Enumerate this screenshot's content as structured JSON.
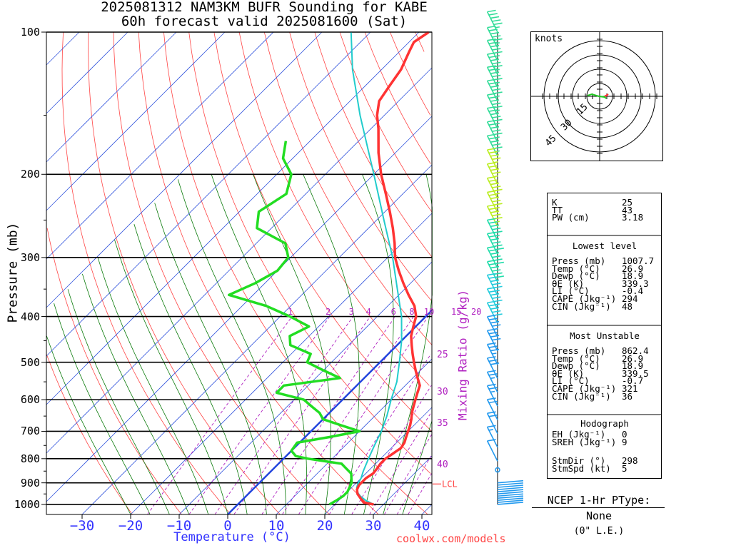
{
  "title_line1": "2025081312 NAM3KM BUFR Sounding for KABE",
  "title_line2": "60h forecast valid 2025081600 (Sat)",
  "y_axis_label": "Pressure (mb)",
  "x_axis_label": "Temperature (°C)",
  "mixing_ratio_label": "Mixing Ratio (g/kg)",
  "credit": "coolwx.com/models",
  "lcl_label": "LCL",
  "ptype_title": "NCEP 1-Hr PType:",
  "ptype_value": "None",
  "ptype_amount": "(0\" L.E.)",
  "hodograph": {
    "units_label": "knots",
    "ring_labels": [
      "15",
      "30",
      "45"
    ]
  },
  "chart_data": {
    "type": "skew-t",
    "x_ticks": [
      -30,
      -20,
      -10,
      0,
      10,
      20,
      30,
      40
    ],
    "y_ticks": [
      100,
      200,
      300,
      400,
      500,
      600,
      700,
      800,
      900,
      1000
    ],
    "y_tick_labels": [
      "100",
      "200",
      "300",
      "400",
      "500",
      "600",
      "700",
      "800",
      "900",
      "1000"
    ],
    "xlim": [
      -38,
      42
    ],
    "ylim": [
      1050,
      100
    ],
    "mixing_ratio_lines": [
      1,
      2,
      3,
      4,
      6,
      8,
      10,
      15,
      20,
      25,
      30,
      35,
      40
    ],
    "temperature": {
      "color": "#ff3333",
      "points": [
        [
          1000,
          28
        ],
        [
          990,
          25.5
        ],
        [
          970,
          24
        ],
        [
          950,
          22.5
        ],
        [
          930,
          21.5
        ],
        [
          910,
          21
        ],
        [
          880,
          21
        ],
        [
          860,
          21.5
        ],
        [
          840,
          21.3
        ],
        [
          820,
          21
        ],
        [
          800,
          21
        ],
        [
          780,
          21.5
        ],
        [
          760,
          22
        ],
        [
          740,
          21.6
        ],
        [
          720,
          20.8
        ],
        [
          700,
          20
        ],
        [
          680,
          19.2
        ],
        [
          660,
          18.2
        ],
        [
          640,
          17
        ],
        [
          620,
          16
        ],
        [
          600,
          15
        ],
        [
          580,
          14
        ],
        [
          560,
          13
        ],
        [
          540,
          11
        ],
        [
          520,
          9
        ],
        [
          500,
          7
        ],
        [
          480,
          5
        ],
        [
          460,
          3
        ],
        [
          440,
          1
        ],
        [
          420,
          -0.5
        ],
        [
          400,
          -2
        ],
        [
          380,
          -4.5
        ],
        [
          360,
          -8
        ],
        [
          340,
          -11.5
        ],
        [
          320,
          -15
        ],
        [
          300,
          -18.5
        ],
        [
          280,
          -21.5
        ],
        [
          260,
          -25
        ],
        [
          240,
          -29
        ],
        [
          220,
          -33.5
        ],
        [
          200,
          -38.5
        ],
        [
          180,
          -43.5
        ],
        [
          160,
          -48.5
        ],
        [
          150,
          -51.5
        ],
        [
          140,
          -54
        ],
        [
          130,
          -55
        ],
        [
          120,
          -56
        ],
        [
          110,
          -58
        ],
        [
          105,
          -59
        ],
        [
          100,
          -58
        ]
      ]
    },
    "dewpoint": {
      "color": "#22dd22",
      "points": [
        [
          1000,
          18.9
        ],
        [
          980,
          19.5
        ],
        [
          960,
          20
        ],
        [
          940,
          20
        ],
        [
          920,
          19.5
        ],
        [
          900,
          19
        ],
        [
          880,
          18
        ],
        [
          860,
          17
        ],
        [
          840,
          15
        ],
        [
          820,
          13
        ],
        [
          800,
          5
        ],
        [
          790,
          2
        ],
        [
          770,
          0
        ],
        [
          740,
          -0.5
        ],
        [
          720,
          5
        ],
        [
          700,
          10
        ],
        [
          680,
          5
        ],
        [
          660,
          0
        ],
        [
          640,
          -2
        ],
        [
          620,
          -5
        ],
        [
          600,
          -8
        ],
        [
          580,
          -15
        ],
        [
          560,
          -15
        ],
        [
          540,
          -5
        ],
        [
          520,
          -10
        ],
        [
          500,
          -15
        ],
        [
          480,
          -16
        ],
        [
          460,
          -22
        ],
        [
          440,
          -24
        ],
        [
          420,
          -22
        ],
        [
          400,
          -28
        ],
        [
          380,
          -35
        ],
        [
          360,
          -45
        ],
        [
          340,
          -42
        ],
        [
          320,
          -40
        ],
        [
          300,
          -40.5
        ],
        [
          280,
          -44
        ],
        [
          260,
          -53
        ],
        [
          240,
          -56
        ],
        [
          220,
          -54
        ],
        [
          200,
          -57
        ],
        [
          185,
          -62
        ],
        [
          170,
          -65
        ]
      ]
    },
    "parcel": {
      "color": "#22cccc",
      "points": [
        [
          1000,
          28
        ],
        [
          980,
          25.5
        ],
        [
          960,
          23.5
        ],
        [
          940,
          22
        ],
        [
          920,
          21
        ],
        [
          905,
          20.5
        ],
        [
          880,
          20
        ],
        [
          850,
          19
        ],
        [
          800,
          17.5
        ],
        [
          750,
          16
        ],
        [
          700,
          14.5
        ],
        [
          650,
          12.5
        ],
        [
          600,
          10
        ],
        [
          550,
          7.5
        ],
        [
          500,
          4
        ],
        [
          450,
          0
        ],
        [
          400,
          -5
        ],
        [
          350,
          -11.5
        ],
        [
          300,
          -19
        ],
        [
          250,
          -28.5
        ],
        [
          200,
          -40
        ],
        [
          150,
          -55
        ],
        [
          120,
          -66
        ],
        [
          100,
          -74
        ]
      ]
    },
    "wind_barbs": {
      "pressures": [
        100,
        108,
        115,
        123,
        131,
        140,
        150,
        160,
        171,
        183,
        196,
        210,
        225,
        241,
        258,
        276,
        295,
        316,
        338,
        361,
        386,
        413,
        442,
        473,
        506,
        541,
        579,
        619,
        662,
        708,
        757,
        810,
        845,
        900,
        910,
        920,
        930,
        940,
        950,
        960,
        970,
        980,
        990,
        1000
      ],
      "speeds_kt": [
        55,
        55,
        55,
        55,
        55,
        55,
        55,
        55,
        55,
        55,
        45,
        45,
        55,
        55,
        55,
        55,
        60,
        60,
        60,
        55,
        55,
        50,
        45,
        40,
        35,
        30,
        25,
        25,
        20,
        20,
        15,
        10,
        3,
        15,
        15,
        15,
        15,
        15,
        15,
        15,
        15,
        15,
        15,
        15
      ]
    },
    "indices": [
      [
        "K",
        "25"
      ],
      [
        "TT",
        "43"
      ],
      [
        "PW (cm)",
        "3.18"
      ]
    ],
    "lowest_level_title": "Lowest level",
    "lowest_level": [
      [
        "Press (mb)",
        "1007.7"
      ],
      [
        "Temp (°C)",
        "26.9"
      ],
      [
        "Dewp (°C)",
        "18.9"
      ],
      [
        "θE (K)",
        "339.3"
      ],
      [
        "LI (°C)",
        "-0.4"
      ],
      [
        "CAPE (Jkg⁻¹)",
        "294"
      ],
      [
        "CIN (Jkg⁻¹)",
        "48"
      ]
    ],
    "most_unstable_title": "Most Unstable",
    "most_unstable": [
      [
        "Press (mb)",
        "862.4"
      ],
      [
        "Temp (°C)",
        "26.9"
      ],
      [
        "Dewp (°C)",
        "18.9"
      ],
      [
        "θE (K)",
        "339.5"
      ],
      [
        "LI (°C)",
        "-0.7"
      ],
      [
        "CAPE (Jkg⁻¹)",
        "321"
      ],
      [
        "CIN (Jkg⁻¹)",
        "36"
      ]
    ],
    "hodograph_title": "Hodograph",
    "hodograph_stats": [
      [
        "EH (Jkg⁻¹)",
        "0"
      ],
      [
        "SREH (Jkg⁻¹)",
        "9"
      ],
      [
        "StmDir (°)",
        "298"
      ],
      [
        "StmSpd (kt)",
        "5"
      ]
    ]
  }
}
